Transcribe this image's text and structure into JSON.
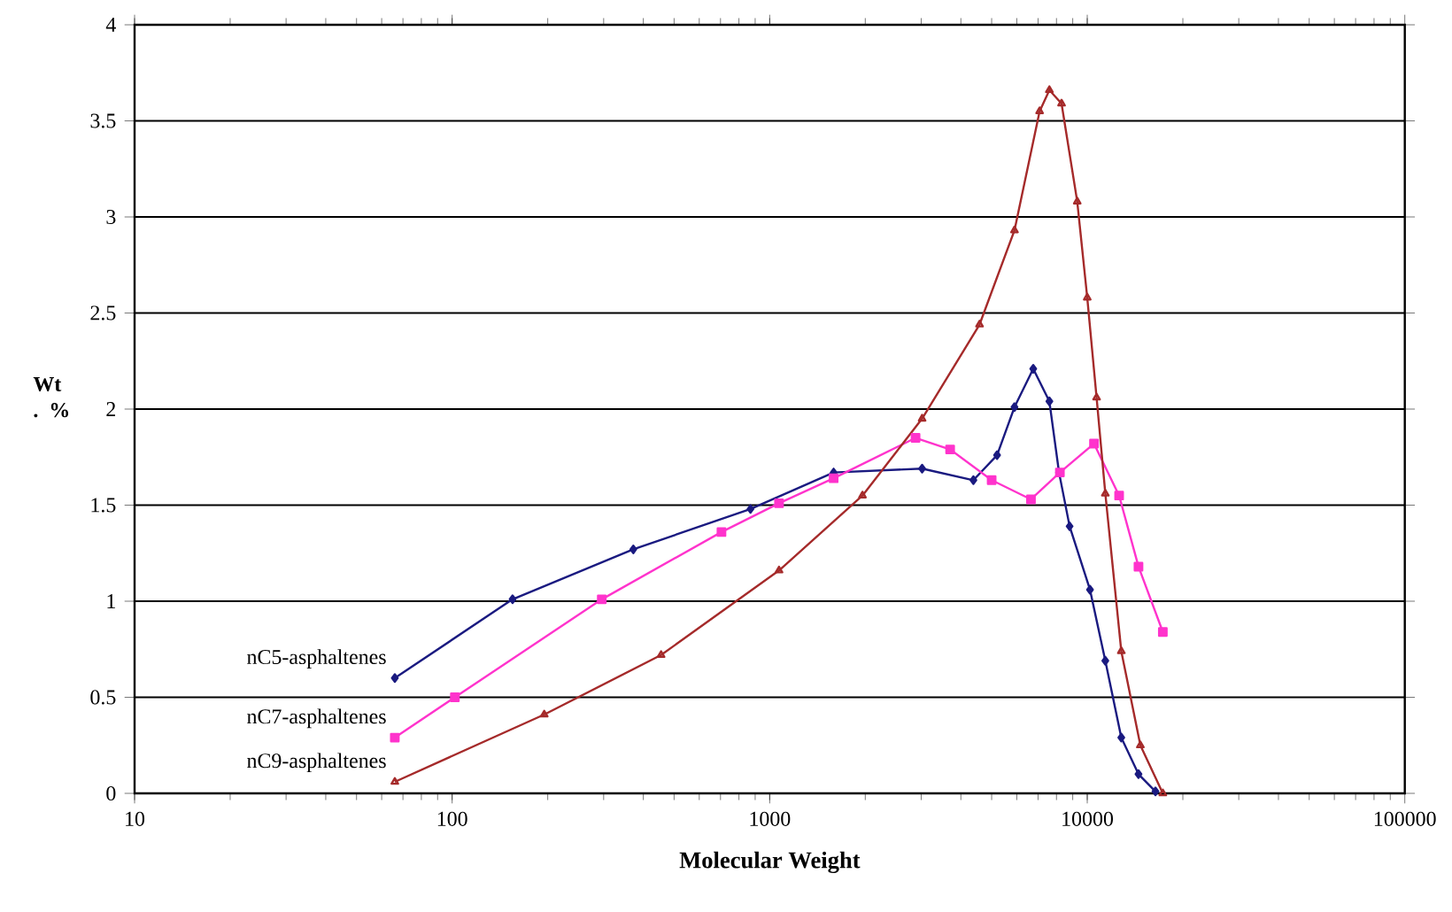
{
  "chart_data": {
    "type": "line",
    "xlabel": "Molecular Weight",
    "ylabel": "Wt . %",
    "log": "x",
    "xlim": [
      10,
      100000
    ],
    "xticks": [
      10,
      100,
      1000,
      10000,
      100000
    ],
    "ylim": [
      0,
      4
    ],
    "yticks": [
      0,
      0.5,
      1,
      1.5,
      2,
      2.5,
      3,
      3.5,
      4
    ],
    "grid": "y",
    "legend": false,
    "series": [
      {
        "name": "nC5-asphaltenes",
        "color": "#1a1a80",
        "marker": "diamond",
        "x": [
          66,
          155,
          372,
          870,
          1590,
          3020,
          4380,
          5200,
          5900,
          6760,
          7600,
          8150,
          8800,
          10200,
          11400,
          12800,
          14500,
          16400
        ],
        "values": [
          0.6,
          1.01,
          1.27,
          1.48,
          1.67,
          1.69,
          1.63,
          1.76,
          2.01,
          2.21,
          2.04,
          1.67,
          1.39,
          1.06,
          0.69,
          0.29,
          0.1,
          0.01
        ]
      },
      {
        "name": "nC7-asphaltenes",
        "color": "#ff33cc",
        "marker": "square",
        "x": [
          66,
          102,
          296,
          705,
          1070,
          1590,
          2880,
          3700,
          5000,
          6650,
          8200,
          10500,
          12600,
          14500,
          17300
        ],
        "values": [
          0.29,
          0.5,
          1.01,
          1.36,
          1.51,
          1.64,
          1.85,
          1.79,
          1.63,
          1.53,
          1.67,
          1.82,
          1.55,
          1.18,
          0.84
        ]
      },
      {
        "name": "nC9-asphaltenes",
        "color": "#a52a2a",
        "marker": "triangle",
        "x": [
          66,
          195,
          455,
          1070,
          1960,
          3020,
          4580,
          5900,
          7080,
          7600,
          8300,
          9300,
          10000,
          10700,
          11400,
          12800,
          14700,
          17300
        ],
        "values": [
          0.06,
          0.41,
          0.72,
          1.16,
          1.55,
          1.95,
          2.44,
          2.93,
          3.55,
          3.66,
          3.59,
          3.08,
          2.58,
          2.06,
          1.56,
          0.74,
          0.25,
          0.0
        ]
      }
    ]
  }
}
